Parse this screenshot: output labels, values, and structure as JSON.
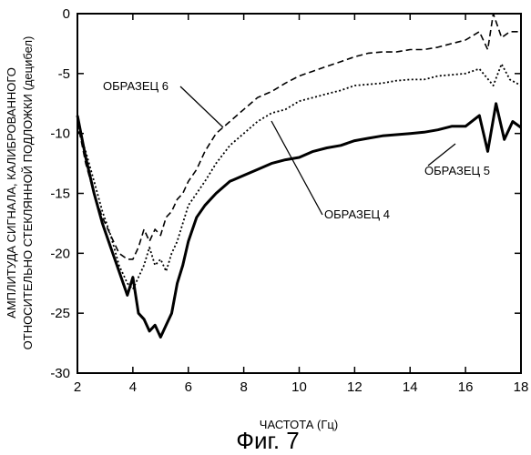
{
  "chart_data": {
    "type": "line",
    "title": "",
    "caption": "Фиг. 7",
    "xlabel": "ЧАСТОТА (Гц)",
    "ylabel_line1": "АМПЛИТУДА СИГНАЛА, КАЛИБРОВАННОГО",
    "ylabel_line2": "ОТНОСИТЕЛЬНО СТЕКЛЯННОЙ ПОДЛОЖКИ (децибел)",
    "xlim": [
      2,
      18
    ],
    "ylim": [
      -30,
      0
    ],
    "xticks": [
      "2",
      "4",
      "6",
      "8",
      "10",
      "12",
      "14",
      "16",
      "18"
    ],
    "yticks": [
      "0",
      "-5",
      "-10",
      "-15",
      "-20",
      "-25",
      "-30"
    ],
    "grid": false,
    "series": [
      {
        "name": "ОБРАЗЕЦ 4",
        "style": "dotted",
        "points": [
          [
            2.0,
            -9.5
          ],
          [
            2.3,
            -11.5
          ],
          [
            2.6,
            -14
          ],
          [
            2.9,
            -16.5
          ],
          [
            3.2,
            -18.5
          ],
          [
            3.5,
            -21
          ],
          [
            3.8,
            -22.5
          ],
          [
            4.0,
            -23
          ],
          [
            4.2,
            -22
          ],
          [
            4.4,
            -21
          ],
          [
            4.6,
            -19.5
          ],
          [
            4.8,
            -21
          ],
          [
            5.0,
            -20.5
          ],
          [
            5.2,
            -21.5
          ],
          [
            5.4,
            -20
          ],
          [
            5.6,
            -19
          ],
          [
            5.8,
            -17.5
          ],
          [
            6.0,
            -16
          ],
          [
            6.3,
            -15
          ],
          [
            6.6,
            -14
          ],
          [
            7.0,
            -12.5
          ],
          [
            7.5,
            -11
          ],
          [
            8.0,
            -10
          ],
          [
            8.5,
            -9
          ],
          [
            9.0,
            -8.3
          ],
          [
            9.5,
            -8
          ],
          [
            10.0,
            -7.3
          ],
          [
            10.5,
            -7
          ],
          [
            11.0,
            -6.7
          ],
          [
            11.5,
            -6.4
          ],
          [
            12.0,
            -6
          ],
          [
            12.5,
            -5.9
          ],
          [
            13.0,
            -5.8
          ],
          [
            13.5,
            -5.6
          ],
          [
            14.0,
            -5.5
          ],
          [
            14.5,
            -5.5
          ],
          [
            15.0,
            -5.2
          ],
          [
            15.5,
            -5.1
          ],
          [
            16.0,
            -5
          ],
          [
            16.5,
            -4.6
          ],
          [
            17.0,
            -6
          ],
          [
            17.3,
            -4.2
          ],
          [
            17.6,
            -5.5
          ],
          [
            18.0,
            -6
          ]
        ]
      },
      {
        "name": "ОБРАЗЕЦ 5",
        "style": "solid",
        "points": [
          [
            2.0,
            -8.5
          ],
          [
            2.3,
            -12
          ],
          [
            2.6,
            -15
          ],
          [
            2.9,
            -17.5
          ],
          [
            3.2,
            -19.5
          ],
          [
            3.5,
            -21.5
          ],
          [
            3.8,
            -23.5
          ],
          [
            4.0,
            -22
          ],
          [
            4.2,
            -25
          ],
          [
            4.4,
            -25.5
          ],
          [
            4.6,
            -26.5
          ],
          [
            4.8,
            -26
          ],
          [
            5.0,
            -27
          ],
          [
            5.2,
            -26
          ],
          [
            5.4,
            -25
          ],
          [
            5.6,
            -22.5
          ],
          [
            5.8,
            -21
          ],
          [
            6.0,
            -19
          ],
          [
            6.3,
            -17
          ],
          [
            6.6,
            -16
          ],
          [
            7.0,
            -15
          ],
          [
            7.5,
            -14
          ],
          [
            8.0,
            -13.5
          ],
          [
            8.5,
            -13
          ],
          [
            9.0,
            -12.5
          ],
          [
            9.5,
            -12.2
          ],
          [
            10.0,
            -12
          ],
          [
            10.5,
            -11.5
          ],
          [
            11.0,
            -11.2
          ],
          [
            11.5,
            -11
          ],
          [
            12.0,
            -10.6
          ],
          [
            12.5,
            -10.4
          ],
          [
            13.0,
            -10.2
          ],
          [
            13.5,
            -10.1
          ],
          [
            14.0,
            -10
          ],
          [
            14.5,
            -9.9
          ],
          [
            15.0,
            -9.7
          ],
          [
            15.5,
            -9.4
          ],
          [
            16.0,
            -9.4
          ],
          [
            16.5,
            -8.5
          ],
          [
            16.8,
            -11.5
          ],
          [
            17.1,
            -7.5
          ],
          [
            17.4,
            -10.5
          ],
          [
            17.7,
            -9
          ],
          [
            18.0,
            -9.5
          ]
        ]
      },
      {
        "name": "ОБРАЗЕЦ 6",
        "style": "dashed",
        "points": [
          [
            2.0,
            -9
          ],
          [
            2.3,
            -12.5
          ],
          [
            2.6,
            -15
          ],
          [
            2.9,
            -17
          ],
          [
            3.2,
            -18.5
          ],
          [
            3.5,
            -20
          ],
          [
            3.8,
            -20.5
          ],
          [
            4.0,
            -20.5
          ],
          [
            4.2,
            -19.5
          ],
          [
            4.4,
            -18
          ],
          [
            4.6,
            -19
          ],
          [
            4.8,
            -18
          ],
          [
            5.0,
            -18.5
          ],
          [
            5.2,
            -17
          ],
          [
            5.4,
            -16.5
          ],
          [
            5.6,
            -15.5
          ],
          [
            5.8,
            -15
          ],
          [
            6.0,
            -14
          ],
          [
            6.3,
            -13
          ],
          [
            6.6,
            -11.5
          ],
          [
            7.0,
            -10
          ],
          [
            7.5,
            -9
          ],
          [
            8.0,
            -8
          ],
          [
            8.5,
            -7
          ],
          [
            9.0,
            -6.5
          ],
          [
            9.5,
            -5.8
          ],
          [
            10.0,
            -5.2
          ],
          [
            10.5,
            -4.8
          ],
          [
            11.0,
            -4.4
          ],
          [
            11.5,
            -4
          ],
          [
            12.0,
            -3.6
          ],
          [
            12.5,
            -3.3
          ],
          [
            13.0,
            -3.2
          ],
          [
            13.5,
            -3.2
          ],
          [
            14.0,
            -3
          ],
          [
            14.5,
            -3
          ],
          [
            15.0,
            -2.8
          ],
          [
            15.5,
            -2.5
          ],
          [
            16.0,
            -2.2
          ],
          [
            16.5,
            -1.5
          ],
          [
            16.8,
            -3
          ],
          [
            17.0,
            0
          ],
          [
            17.3,
            -2
          ],
          [
            17.6,
            -1.5
          ],
          [
            18.0,
            -1.5
          ]
        ]
      }
    ],
    "annotations": [
      {
        "text": "ОБРАЗЕЦ 6",
        "series": "ОБРАЗЕЦ 6"
      },
      {
        "text": "ОБРАЗЕЦ 4",
        "series": "ОБРАЗЕЦ 4"
      },
      {
        "text": "ОБРАЗЕЦ 5",
        "series": "ОБРАЗЕЦ 5"
      }
    ]
  }
}
